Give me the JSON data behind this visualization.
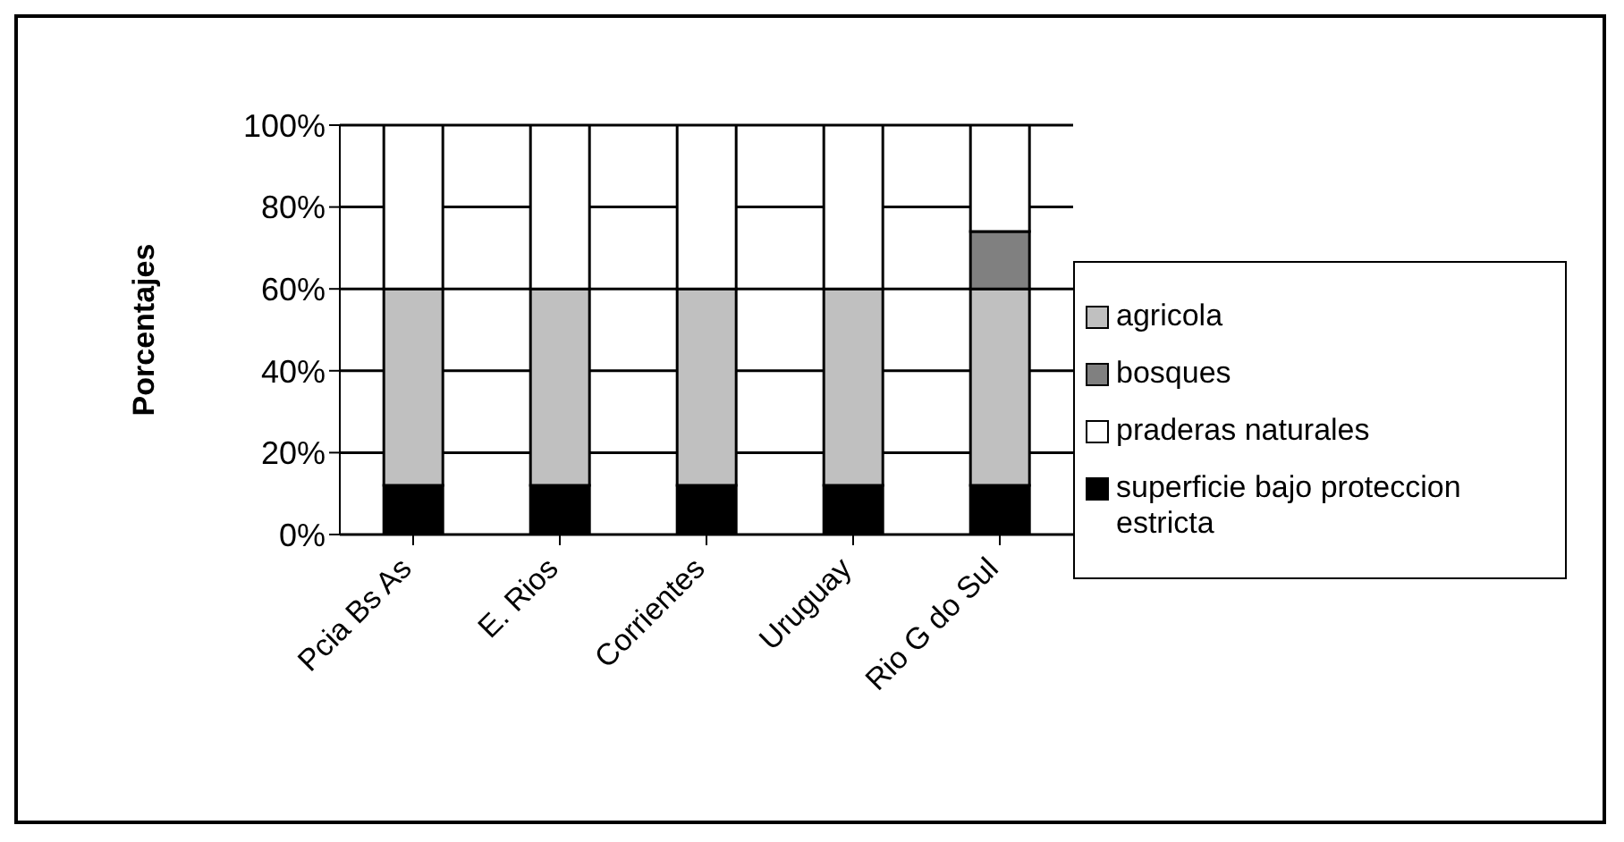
{
  "chart_data": {
    "type": "bar",
    "stacked": true,
    "ylabel": "Porcentajes",
    "categories": [
      "Pcia Bs As",
      "E. Rios",
      "Corrientes",
      "Uruguay",
      "Rio G do Sul"
    ],
    "series": [
      {
        "name": "superficie bajo proteccion estricta",
        "color": "#000000",
        "values": [
          12,
          12,
          12,
          12,
          12
        ]
      },
      {
        "name": "agricola",
        "color": "#c0c0c0",
        "values": [
          48,
          48,
          48,
          48,
          48
        ]
      },
      {
        "name": "bosques",
        "color": "#808080",
        "values": [
          0,
          0,
          0,
          0,
          14
        ]
      },
      {
        "name": "praderas naturales",
        "color": "#ffffff",
        "values": [
          40,
          40,
          40,
          40,
          26
        ]
      }
    ],
    "ylim": [
      0,
      100
    ],
    "yticks": [
      {
        "value": 0,
        "label": "0%"
      },
      {
        "value": 20,
        "label": "20%"
      },
      {
        "value": 40,
        "label": "40%"
      },
      {
        "value": 60,
        "label": "60%"
      },
      {
        "value": 80,
        "label": "80%"
      },
      {
        "value": 100,
        "label": "100%"
      }
    ],
    "grid": "y",
    "legend": "right"
  }
}
